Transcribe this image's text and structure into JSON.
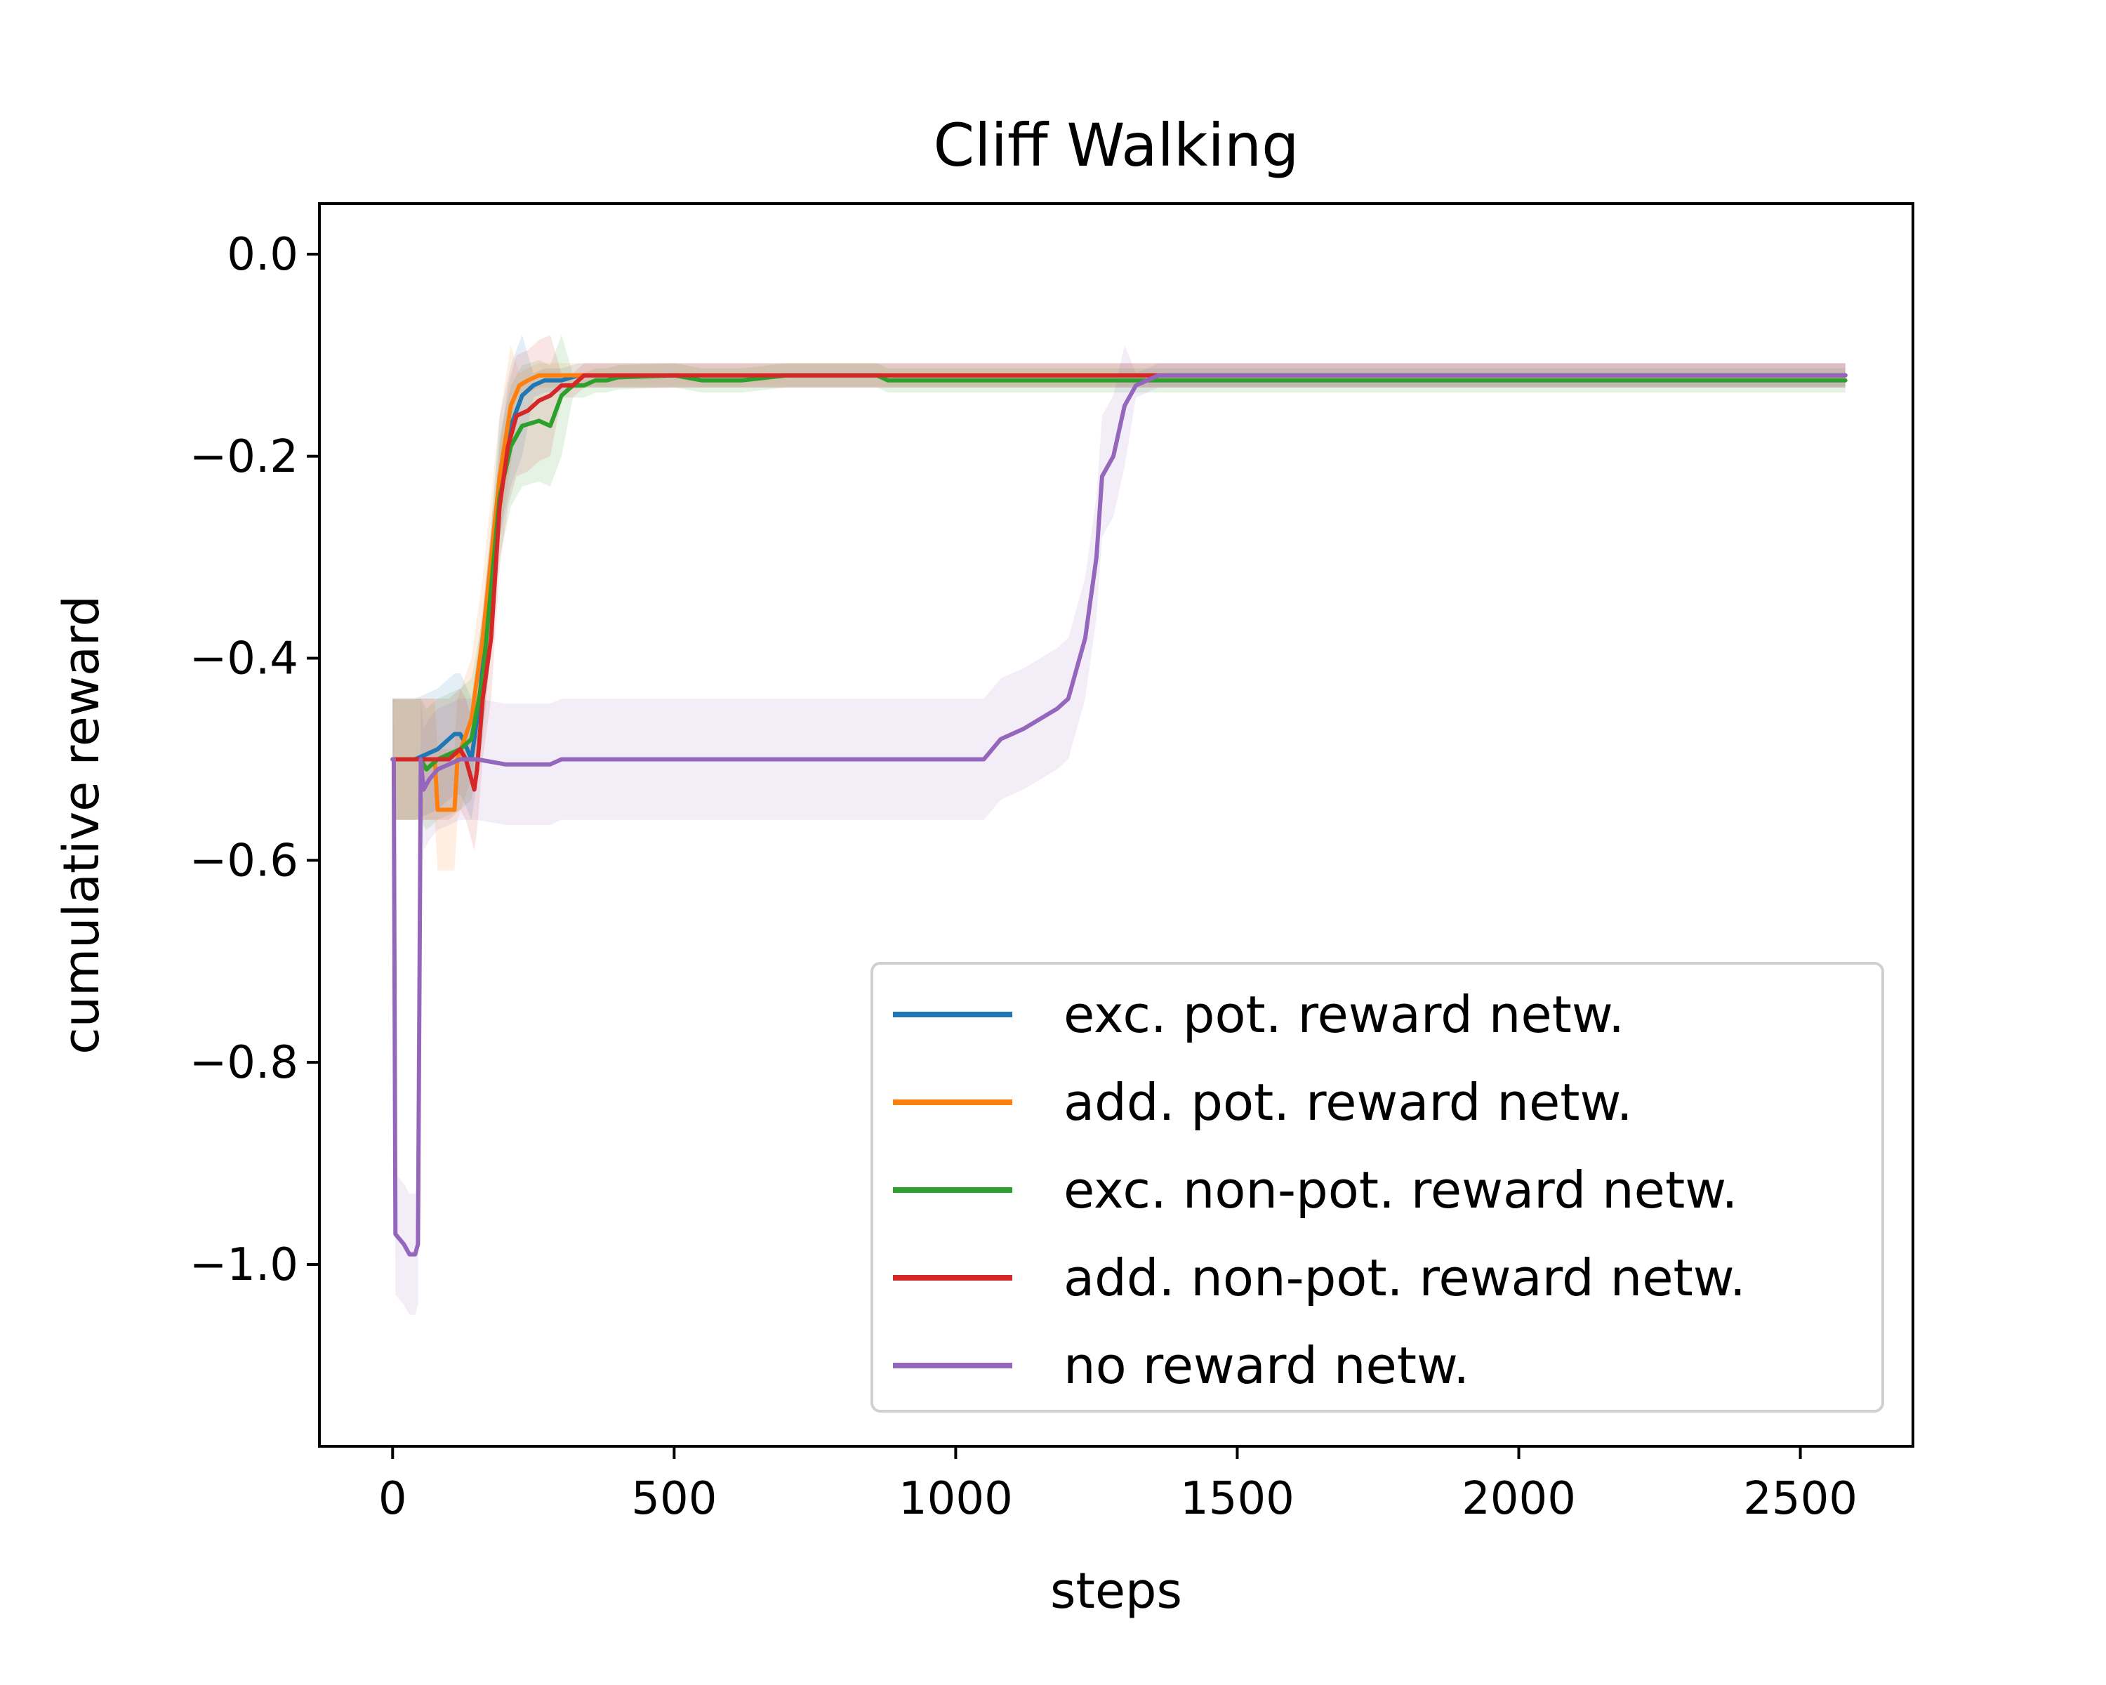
{
  "chart_data": {
    "type": "line",
    "title": "Cliff Walking",
    "xlabel": "steps",
    "ylabel": "cumulative reward",
    "xlim": [
      -130,
      2700
    ],
    "ylim": [
      -1.18,
      0.05
    ],
    "xticks": [
      0,
      500,
      1000,
      1500,
      2000,
      2500
    ],
    "xtick_labels": [
      "0",
      "500",
      "1000",
      "1500",
      "2000",
      "2500"
    ],
    "yticks": [
      0.0,
      -0.2,
      -0.4,
      -0.6,
      -0.8,
      -1.0
    ],
    "ytick_labels": [
      "0.0",
      "−0.2",
      "−0.4",
      "−0.6",
      "−0.8",
      "−1.0"
    ],
    "grid": false,
    "legend_position": "lower-right",
    "series": [
      {
        "name": "exc. pot. reward netw.",
        "color": "#1f77b4",
        "x": [
          0,
          40,
          80,
          100,
          110,
          120,
          125,
          140,
          150,
          160,
          175,
          190,
          210,
          230,
          250,
          270,
          300,
          330,
          400,
          2580
        ],
        "y": [
          -0.5,
          -0.5,
          -0.49,
          -0.48,
          -0.475,
          -0.475,
          -0.48,
          -0.5,
          -0.46,
          -0.41,
          -0.33,
          -0.22,
          -0.17,
          -0.14,
          -0.13,
          -0.125,
          -0.125,
          -0.12,
          -0.12,
          -0.12
        ]
      },
      {
        "name": "add. pot. reward netw.",
        "color": "#ff7f0e",
        "x": [
          0,
          75,
          80,
          110,
          115,
          140,
          160,
          175,
          190,
          210,
          225,
          240,
          260,
          300,
          2580
        ],
        "y": [
          -0.5,
          -0.5,
          -0.55,
          -0.55,
          -0.5,
          -0.46,
          -0.38,
          -0.3,
          -0.22,
          -0.15,
          -0.13,
          -0.125,
          -0.12,
          -0.12,
          -0.12
        ]
      },
      {
        "name": "exc. non-pot. reward netw.",
        "color": "#2ca02c",
        "x": [
          0,
          50,
          60,
          80,
          120,
          140,
          160,
          175,
          190,
          210,
          230,
          260,
          280,
          300,
          320,
          340,
          360,
          380,
          400,
          500,
          550,
          620,
          700,
          860,
          880,
          2580
        ],
        "y": [
          -0.5,
          -0.5,
          -0.51,
          -0.5,
          -0.49,
          -0.48,
          -0.42,
          -0.33,
          -0.24,
          -0.19,
          -0.17,
          -0.165,
          -0.17,
          -0.14,
          -0.13,
          -0.13,
          -0.125,
          -0.125,
          -0.122,
          -0.12,
          -0.125,
          -0.125,
          -0.12,
          -0.12,
          -0.125,
          -0.125
        ]
      },
      {
        "name": "add. non-pot. reward netw.",
        "color": "#d62728",
        "x": [
          0,
          100,
          120,
          130,
          140,
          145,
          150,
          160,
          175,
          190,
          205,
          220,
          240,
          260,
          280,
          300,
          320,
          340,
          360,
          2580
        ],
        "y": [
          -0.5,
          -0.5,
          -0.49,
          -0.5,
          -0.52,
          -0.53,
          -0.51,
          -0.44,
          -0.38,
          -0.25,
          -0.19,
          -0.16,
          -0.155,
          -0.145,
          -0.14,
          -0.13,
          -0.13,
          -0.12,
          -0.12,
          -0.12
        ]
      },
      {
        "name": "no reward netw.",
        "color": "#9467bd",
        "x": [
          0,
          2,
          5,
          20,
          30,
          40,
          45,
          50,
          55,
          65,
          80,
          100,
          120,
          150,
          200,
          250,
          280,
          300,
          400,
          500,
          600,
          700,
          850,
          950,
          1000,
          1050,
          1080,
          1100,
          1120,
          1150,
          1180,
          1200,
          1230,
          1250,
          1260,
          1280,
          1300,
          1320,
          1340,
          1360,
          1500,
          2580
        ],
        "y": [
          -0.5,
          -0.5,
          -0.97,
          -0.98,
          -0.99,
          -0.99,
          -0.98,
          -0.5,
          -0.53,
          -0.52,
          -0.51,
          -0.505,
          -0.5,
          -0.5,
          -0.505,
          -0.505,
          -0.505,
          -0.5,
          -0.5,
          -0.5,
          -0.5,
          -0.5,
          -0.5,
          -0.5,
          -0.5,
          -0.5,
          -0.48,
          -0.475,
          -0.47,
          -0.46,
          -0.45,
          -0.44,
          -0.38,
          -0.3,
          -0.22,
          -0.2,
          -0.15,
          -0.13,
          -0.125,
          -0.12,
          -0.12,
          -0.12
        ]
      }
    ]
  }
}
